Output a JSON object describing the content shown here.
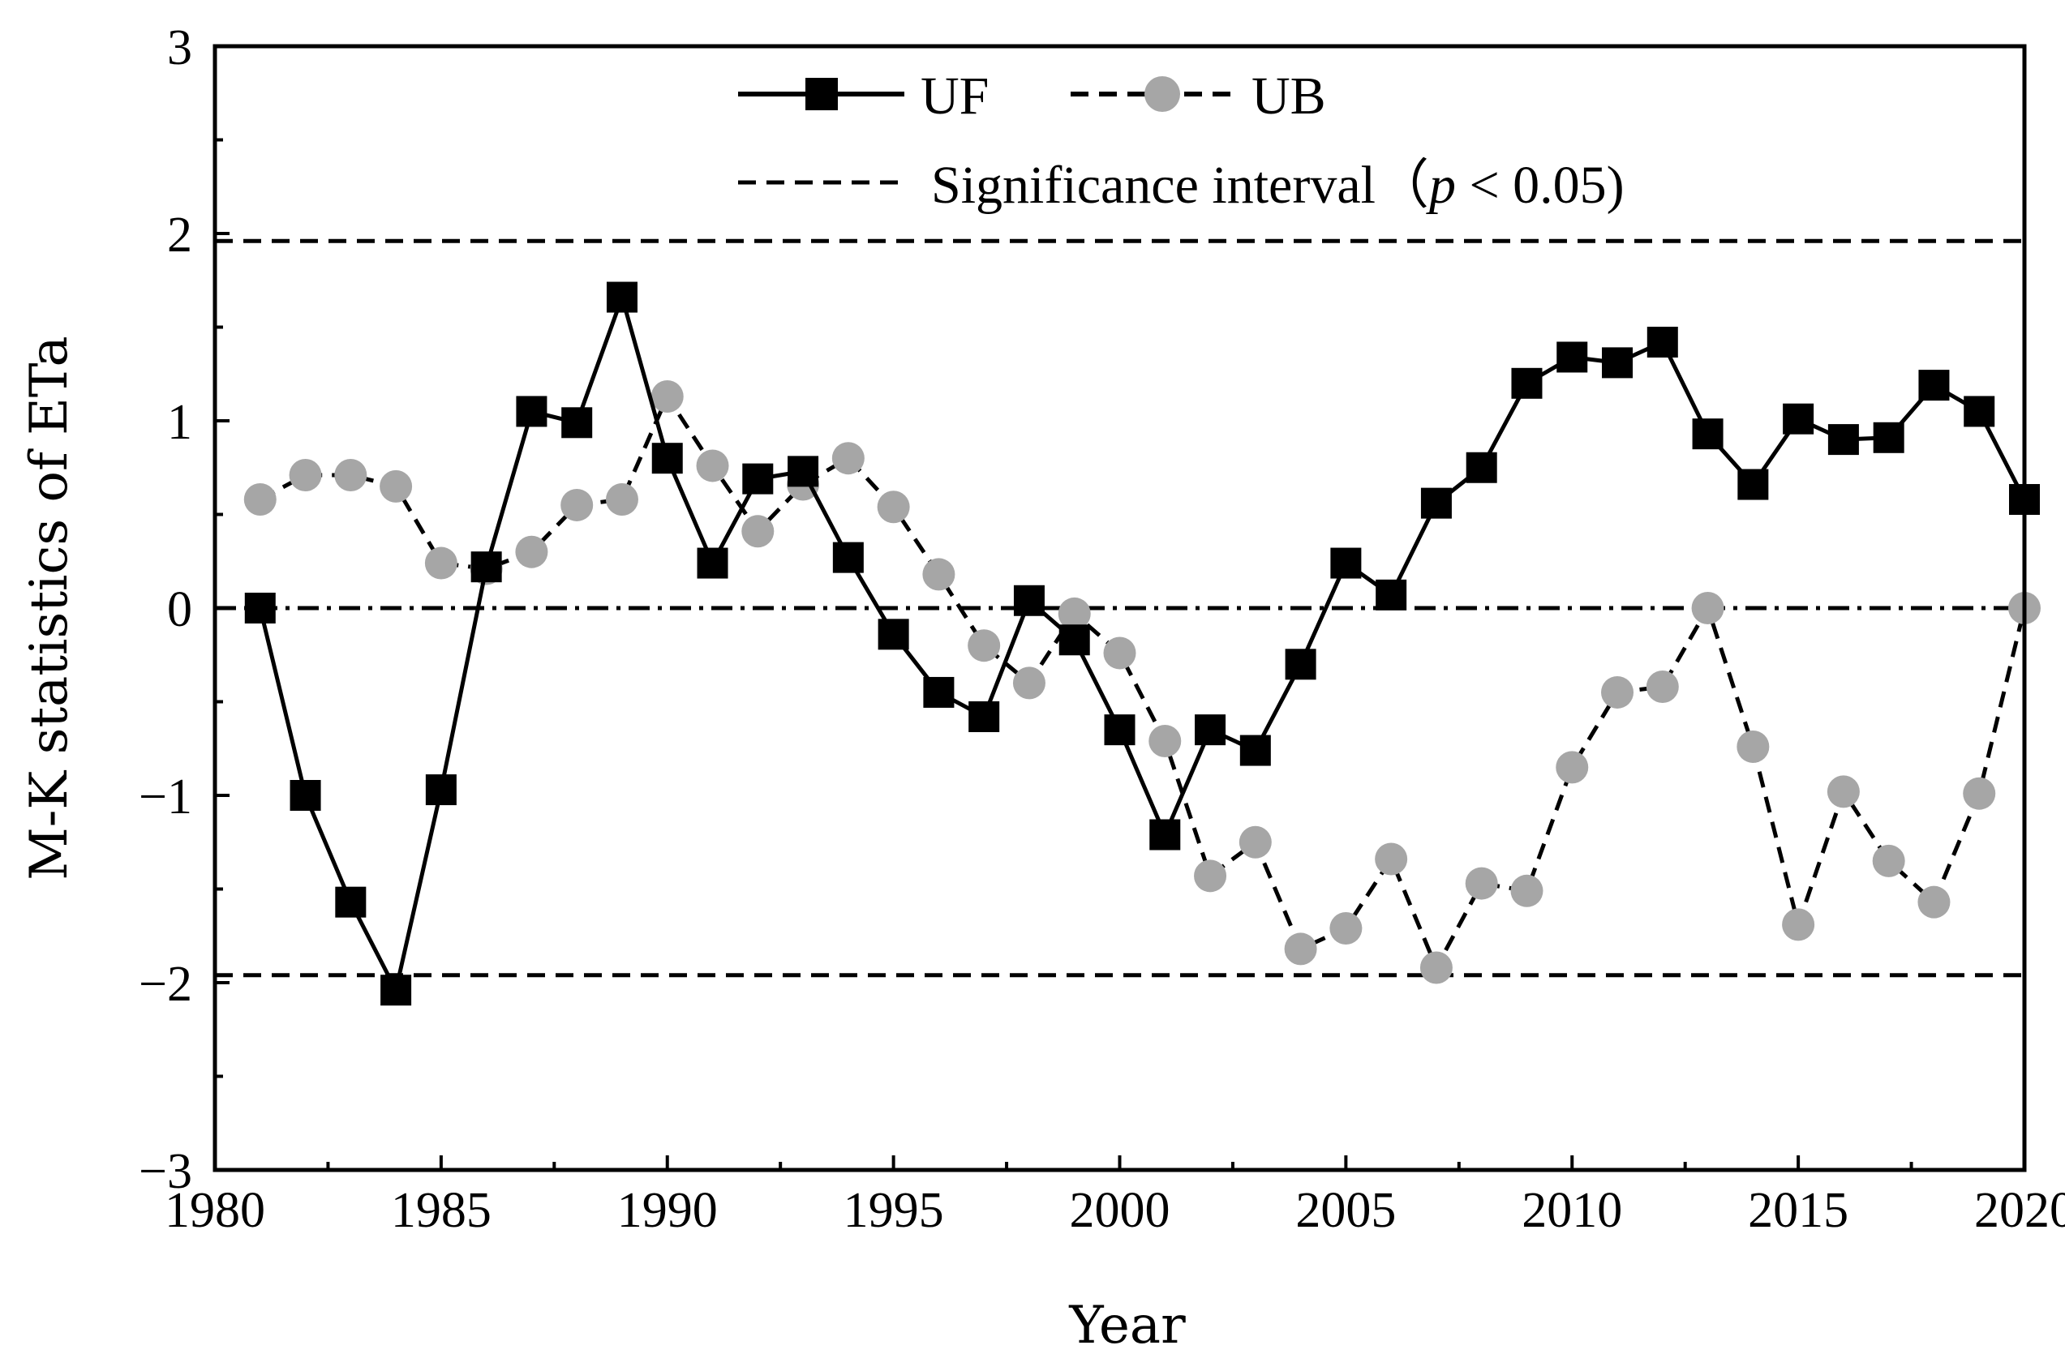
{
  "chart_data": {
    "type": "line",
    "xlabel": "Year",
    "ylabel": "M-K statistics of ETa",
    "xlim": [
      1980,
      2020
    ],
    "ylim": [
      -3,
      3
    ],
    "x_ticks": [
      "1980",
      "1985",
      "1990",
      "1995",
      "2000",
      "2005",
      "2010",
      "2015",
      "2020"
    ],
    "y_ticks": [
      "−3",
      "−2",
      "−1",
      "0",
      "1",
      "2",
      "3"
    ],
    "x": [
      1981,
      1982,
      1983,
      1984,
      1985,
      1986,
      1987,
      1988,
      1989,
      1990,
      1991,
      1992,
      1993,
      1994,
      1995,
      1996,
      1997,
      1998,
      1999,
      2000,
      2001,
      2002,
      2003,
      2004,
      2005,
      2006,
      2007,
      2008,
      2009,
      2010,
      2011,
      2012,
      2013,
      2014,
      2015,
      2016,
      2017,
      2018,
      2019,
      2020
    ],
    "series": [
      {
        "name": "UF",
        "color": "#000000",
        "line": "solid",
        "marker": "square",
        "values": [
          0.0,
          -1.0,
          -1.57,
          -2.04,
          -0.97,
          0.22,
          1.05,
          0.99,
          1.66,
          0.8,
          0.24,
          0.69,
          0.73,
          0.27,
          -0.14,
          -0.45,
          -0.58,
          0.04,
          -0.17,
          -0.65,
          -1.21,
          -0.65,
          -0.76,
          -0.3,
          0.24,
          0.07,
          0.56,
          0.75,
          1.2,
          1.34,
          1.31,
          1.42,
          0.93,
          0.66,
          1.01,
          0.9,
          0.91,
          1.19,
          1.05,
          0.58
        ]
      },
      {
        "name": "UB",
        "color": "#a6a6a6",
        "line": "dashed",
        "marker": "circle",
        "values": [
          0.58,
          0.71,
          0.71,
          0.65,
          0.24,
          0.21,
          0.3,
          0.55,
          0.58,
          1.13,
          0.76,
          0.41,
          0.66,
          0.8,
          0.54,
          0.18,
          -0.2,
          -0.4,
          -0.03,
          -0.24,
          -0.71,
          -1.43,
          -1.25,
          -1.82,
          -1.71,
          -1.34,
          -1.92,
          -1.47,
          -1.51,
          -0.85,
          -0.45,
          -0.42,
          0.0,
          -0.74,
          -1.69,
          -0.98,
          -1.35,
          -1.57,
          -0.99,
          0.0
        ]
      }
    ],
    "reference_lines": [
      {
        "y": 1.96,
        "style": "dashed"
      },
      {
        "y": -1.96,
        "style": "dashed"
      },
      {
        "y": 0,
        "style": "dash-dot"
      }
    ],
    "legend": {
      "placement": "top-center",
      "uf_label": "UF",
      "ub_label": "UB",
      "sig_prefix": "Significance interval（",
      "sig_p": "p",
      "sig_suffix": " < 0.05)"
    },
    "grid": false
  }
}
